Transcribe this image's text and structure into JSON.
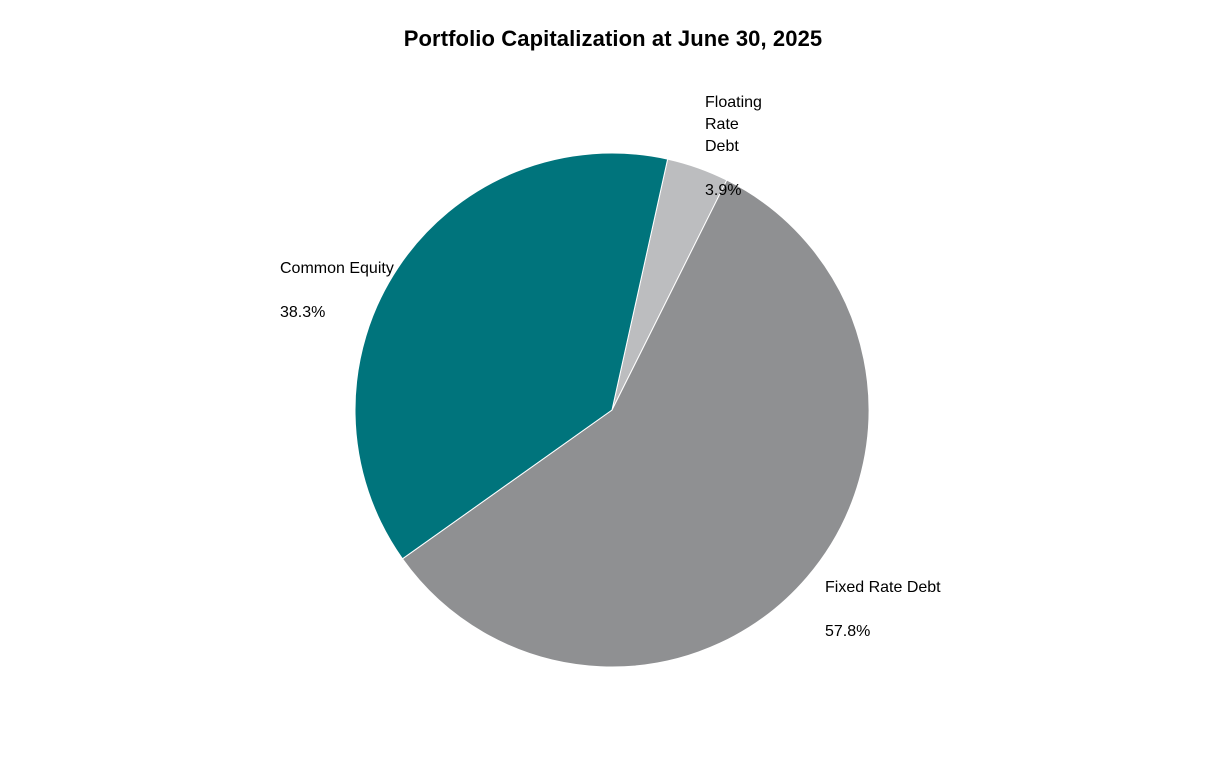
{
  "chart_data": {
    "type": "pie",
    "title": "Portfolio Capitalization at  June 30, 2025",
    "start_angle_deg": 12.5,
    "slices": [
      {
        "label": "Floating Rate Debt",
        "value": 3.9,
        "display": "3.9%",
        "color": "#bcbdbf"
      },
      {
        "label": "Fixed Rate Debt",
        "value": 57.8,
        "display": "57.8%",
        "color": "#8f9092"
      },
      {
        "label": "Common Equity",
        "value": 38.3,
        "display": "38.3%",
        "color": "#00747c"
      }
    ],
    "labels": {
      "floating": {
        "name": "Floating\nRate\nDebt",
        "pct": "3.9%"
      },
      "fixed": {
        "name": "Fixed Rate Debt",
        "pct": "57.8%"
      },
      "equity": {
        "name": "Common Equity",
        "pct": "38.3%"
      }
    },
    "legend": "none"
  }
}
